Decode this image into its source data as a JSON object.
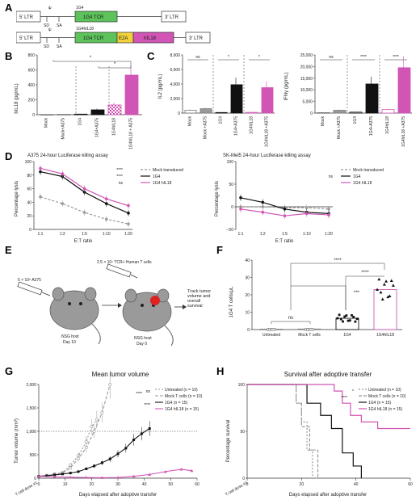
{
  "labels": {
    "A": "A",
    "B": "B",
    "C": "C",
    "D": "D",
    "E": "E",
    "F": "F",
    "G": "G",
    "H": "H"
  },
  "panelA": {
    "construct1": {
      "ltr5": "5′ LTR",
      "sd": "SD",
      "sa": "SA",
      "psi": "ψ",
      "name": "1G4",
      "tcr": "1G4 TCR",
      "ltr3": "3′ LTR"
    },
    "construct2": {
      "ltr5": "5′ LTR",
      "sd": "SD",
      "sa": "SA",
      "psi": "ψ",
      "name": "1G4hIL18",
      "tcr": "1G4 TCR",
      "e2a": "E2A",
      "il18": "hIL18",
      "ltr3": "3′ LTR"
    },
    "colors": {
      "tcr": "#5cc25a",
      "e2a": "#f2d13a",
      "il18": "#d055b4"
    }
  },
  "panelB": {
    "ylabel": "hIL18 (pg/mL)",
    "yticks": [
      "0",
      "200",
      "400",
      "600",
      "800"
    ],
    "groups": [
      "Mock",
      "Mock+A375",
      "1G4",
      "1G4+A375",
      "1G4hIL18",
      "1G4hIL18 + A375"
    ],
    "sig": [
      "*",
      "*"
    ]
  },
  "panelC": {
    "il2": {
      "ylabel": "IL2 (pg/mL)",
      "yticks": [
        "0",
        "2,000",
        "4,000",
        "6,000",
        "8,000"
      ],
      "sig": [
        "ns",
        "*",
        "*"
      ]
    },
    "ifng": {
      "ylabel": "IFNγ (pg/mL)",
      "yticks": [
        "0",
        "5,000",
        "10,000",
        "15,000",
        "20,000",
        "25,000"
      ],
      "sig": [
        "ns",
        "****",
        "****"
      ]
    },
    "groups": [
      "Mock",
      "Mock +A375",
      "1G4",
      "1G4+A375",
      "1G4hIL18",
      "1G4hIL18 +A375"
    ]
  },
  "panelD": {
    "left": {
      "title": "A375 24-hour Luciferase killing assay",
      "ylabel": "Percentage lysis",
      "xlabel": "E:T ratio"
    },
    "right": {
      "title": "SK-Mel5 24-hour Luciferase killing assay",
      "ylabel": "Percentage lysis",
      "xlabel": "E:T ratio"
    },
    "legend": [
      "Mock transduced",
      "1G4",
      "1G4 hIL18"
    ],
    "xticks": [
      "1:1",
      "1:2",
      "1:5",
      "1:10",
      "1:20"
    ],
    "sig_left": [
      "****",
      "****",
      "ns"
    ],
    "sig_right": [
      "ns"
    ],
    "yticks_left": [
      "0",
      "20",
      "40",
      "60",
      "80",
      "100"
    ],
    "yticks_right": [
      "−50",
      "0",
      "50",
      "100"
    ]
  },
  "panelE": {
    "cells1": "5 × 10⁶ A375",
    "cells2": "2.5 × 10⁷ TCR+ Human T cells",
    "host1": "NSG host",
    "day1": "Day 10",
    "host2": "NSG host",
    "day2": "Day 0",
    "track": "Track tumor volume and overall survival"
  },
  "panelF": {
    "ylabel": "1G4 T cells/μL",
    "yticks": [
      "0",
      "10",
      "20",
      "30",
      "40"
    ],
    "groups": [
      "Untreated",
      "Mock T cells",
      "1G4",
      "1G4hIL18"
    ],
    "sig": [
      "ns",
      "***",
      "****",
      "****"
    ]
  },
  "panelG": {
    "title": "Mean tumor volume",
    "ylabel": "Tumor volume (mm³)",
    "xlabel": "Days elapsed after adoptive transfer",
    "yticks": [
      "0",
      "500",
      "1,000",
      "1,500",
      "2,000"
    ],
    "xticks": [
      "0",
      "10",
      "20",
      "30",
      "40",
      "50",
      "60"
    ],
    "legend": [
      "Untreated (n = 10)",
      "Mock T cells (n = 10)",
      "1G4 (n = 15)",
      "1G4 hIL18 (n = 15)"
    ],
    "sig": [
      "****",
      "ns",
      "****"
    ],
    "dose": "T-cell dose #1"
  },
  "panelH": {
    "title": "Survival after adoptive transfer",
    "ylabel": "Percentage survival",
    "xlabel": "Days elapsed after adoptive transfer",
    "yticks": [
      "0",
      "50",
      "100"
    ],
    "xticks": [
      "0",
      "20",
      "40",
      "60"
    ],
    "legend": [
      "Untreated (n = 10)",
      "Mock T cells (n = 10)",
      "1G4 (n = 15)",
      "1G4 hIL18 (n = 15)"
    ],
    "sig": [
      "*",
      "****"
    ],
    "dose": "T-cell dose #1"
  },
  "chart_data": [
    {
      "id": "B",
      "type": "bar",
      "categories": [
        "Mock",
        "Mock+A375",
        "1G4",
        "1G4+A375",
        "1G4hIL18",
        "1G4hIL18 + A375"
      ],
      "values": [
        3,
        5,
        8,
        65,
        130,
        530
      ],
      "ylim": [
        0,
        800
      ]
    },
    {
      "id": "C-IL2",
      "type": "bar",
      "categories": [
        "Mock",
        "Mock +A375",
        "1G4",
        "1G4+A375",
        "1G4hIL18",
        "1G4hIL18 +A375"
      ],
      "values": [
        400,
        600,
        80,
        3900,
        100,
        3500
      ],
      "ylim": [
        0,
        8000
      ]
    },
    {
      "id": "C-IFNg",
      "type": "bar",
      "categories": [
        "Mock",
        "Mock +A375",
        "1G4",
        "1G4+A375",
        "1G4hIL18",
        "1G4hIL18 +A375"
      ],
      "values": [
        200,
        1200,
        400,
        12500,
        1500,
        19500
      ],
      "ylim": [
        0,
        25000
      ]
    },
    {
      "id": "D-A375",
      "type": "line",
      "x": [
        "1:1",
        "1:2",
        "1:5",
        "1:10",
        "1:20"
      ],
      "series": [
        {
          "name": "Mock transduced",
          "values": [
            48,
            38,
            25,
            15,
            8
          ]
        },
        {
          "name": "1G4",
          "values": [
            85,
            78,
            55,
            38,
            24
          ]
        },
        {
          "name": "1G4 hIL18",
          "values": [
            90,
            82,
            60,
            45,
            35
          ]
        }
      ],
      "ylim": [
        0,
        100
      ]
    },
    {
      "id": "D-SKMel5",
      "type": "line",
      "x": [
        "1:1",
        "1:2",
        "1:5",
        "1:10",
        "1:20"
      ],
      "series": [
        {
          "name": "Mock transduced",
          "values": [
            0,
            0,
            -2,
            -2,
            -5
          ]
        },
        {
          "name": "1G4",
          "values": [
            20,
            10,
            -5,
            -12,
            -15
          ]
        },
        {
          "name": "1G4 hIL18",
          "values": [
            -5,
            -12,
            -20,
            -15,
            -18
          ]
        }
      ],
      "ylim": [
        -50,
        100
      ]
    },
    {
      "id": "F",
      "type": "scatter",
      "categories": [
        "Untreated",
        "Mock T cells",
        "1G4",
        "1G4hIL18"
      ],
      "means": [
        0.2,
        0.3,
        6.5,
        23
      ]
    },
    {
      "id": "G",
      "type": "line",
      "series": [
        {
          "name": "Untreated (n = 10)",
          "x": [
            0,
            3,
            6,
            9,
            12,
            15,
            18,
            20,
            22
          ],
          "values": [
            40,
            60,
            90,
            120,
            280,
            480,
            780,
            1100,
            1250
          ]
        },
        {
          "name": "Mock T cells (n = 10)",
          "x": [
            0,
            3,
            6,
            9,
            12,
            15,
            18,
            21,
            24,
            27
          ],
          "values": [
            40,
            55,
            80,
            110,
            220,
            420,
            650,
            1000,
            1400,
            2000
          ]
        },
        {
          "name": "1G4 (n = 15)",
          "x": [
            0,
            3,
            6,
            9,
            12,
            15,
            18,
            21,
            24,
            27,
            30,
            33,
            36,
            39,
            42
          ],
          "values": [
            40,
            50,
            70,
            90,
            110,
            140,
            200,
            260,
            330,
            410,
            520,
            640,
            820,
            950,
            1060
          ]
        },
        {
          "name": "1G4 hIL18 (n = 15)",
          "x": [
            0,
            6,
            12,
            18,
            24,
            30,
            36,
            42,
            48,
            54,
            58
          ],
          "values": [
            40,
            30,
            20,
            15,
            10,
            15,
            40,
            80,
            140,
            190,
            160
          ]
        }
      ],
      "xlim": [
        0,
        60
      ],
      "ylim": [
        0,
        2000
      ]
    },
    {
      "id": "H",
      "type": "line",
      "series": [
        {
          "name": "Untreated (n = 10)",
          "x": [
            0,
            15,
            18,
            20,
            22,
            24
          ],
          "values": [
            100,
            100,
            80,
            60,
            30,
            0
          ]
        },
        {
          "name": "Mock T cells (n = 10)",
          "x": [
            0,
            16,
            18,
            20,
            23,
            26
          ],
          "values": [
            100,
            100,
            80,
            55,
            30,
            0
          ]
        },
        {
          "name": "1G4 (n = 15)",
          "x": [
            0,
            18,
            22,
            27,
            31,
            35,
            39,
            42
          ],
          "values": [
            100,
            100,
            80,
            67,
            53,
            27,
            13,
            0
          ]
        },
        {
          "name": "1G4 hIL18 (n = 15)",
          "x": [
            0,
            28,
            32,
            35,
            38,
            42,
            48,
            60
          ],
          "values": [
            100,
            100,
            93,
            80,
            67,
            60,
            53,
            53
          ]
        }
      ],
      "xlim": [
        0,
        60
      ],
      "ylim": [
        0,
        100
      ]
    }
  ]
}
